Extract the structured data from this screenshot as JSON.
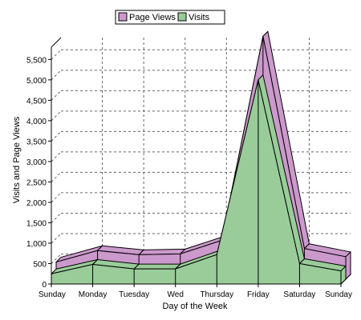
{
  "chart_data": {
    "type": "area",
    "categories": [
      "Sunday",
      "Monday",
      "Tuesday",
      "Wed",
      "Thursday",
      "Friday",
      "Saturday",
      "Sunday"
    ],
    "series": [
      {
        "name": "Page Views",
        "values": [
          420,
          700,
          600,
          620,
          950,
          5950,
          750,
          550
        ],
        "color": "#cc99cc"
      },
      {
        "name": "Visits",
        "values": [
          250,
          480,
          370,
          370,
          720,
          5000,
          500,
          320
        ],
        "color": "#99cc99"
      }
    ],
    "xlabel": "Day of the Week",
    "ylabel": "Visits and Page Views",
    "ylim": [
      0,
      5800
    ],
    "yticks": [
      0,
      500,
      1000,
      1500,
      2000,
      2500,
      3000,
      3500,
      4000,
      4500,
      5000,
      5500
    ],
    "ytick_labels": [
      "0",
      "500",
      "1,000",
      "1,500",
      "2,000",
      "2,500",
      "3,000",
      "3,500",
      "4,000",
      "4,500",
      "5,000",
      "5,500"
    ],
    "grid": true,
    "legend_position": "top-center",
    "style": "3d-stacked-depth"
  }
}
